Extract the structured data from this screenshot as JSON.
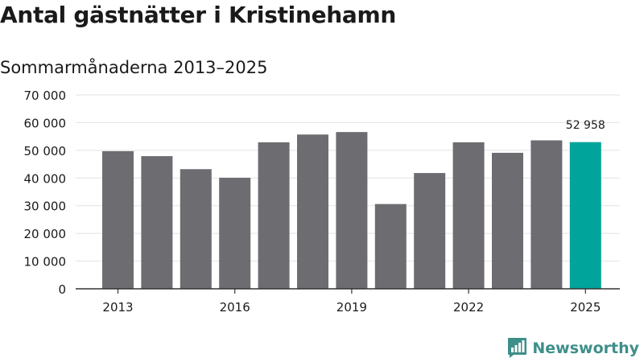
{
  "chart_data": {
    "type": "bar",
    "title": "Antal gästnätter i Kristinehamn",
    "subtitle": "Sommarmånaderna 2013–2025",
    "categories": [
      "2013",
      "2014",
      "2015",
      "2016",
      "2017",
      "2018",
      "2019",
      "2020",
      "2021",
      "2022",
      "2023",
      "2024",
      "2025"
    ],
    "values": [
      49700,
      47900,
      43200,
      40100,
      52900,
      55700,
      56600,
      30600,
      41800,
      52900,
      49100,
      53600,
      52958
    ],
    "ylim": [
      0,
      70000
    ],
    "yticks": [
      0,
      10000,
      20000,
      30000,
      40000,
      50000,
      60000,
      70000
    ],
    "ytick_labels": [
      "0",
      "10 000",
      "20 000",
      "30 000",
      "40 000",
      "50 000",
      "60 000",
      "70 000"
    ],
    "xtick_labels": [
      "2013",
      "2016",
      "2019",
      "2022",
      "2025"
    ],
    "xlabel": "",
    "ylabel": "",
    "grid": true,
    "data_labels": [
      {
        "category": "2025",
        "text": "52 958"
      }
    ],
    "colors": {
      "bar": "#6d6c71",
      "highlight": "#00a49a",
      "grid": "#e2e2e2",
      "axis": "#333333"
    },
    "highlight_category": "2025"
  },
  "brand": {
    "name": "Newsworthy",
    "icon": "newsworthy-logo-icon",
    "color": "#3e8f8a"
  }
}
